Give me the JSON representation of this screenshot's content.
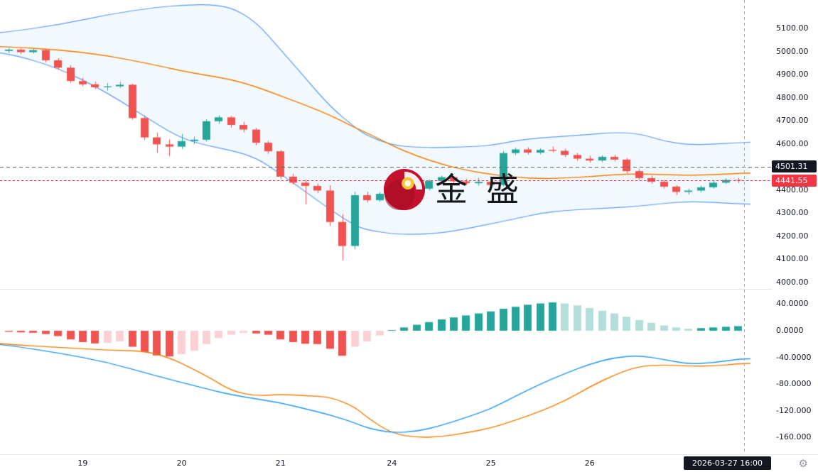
{
  "watermark": {
    "logo": "jinsheng-logo",
    "text": "金盛"
  },
  "overlays": {
    "reference_line": {
      "label": "4501.31",
      "value": 4501.31,
      "color": "#131722"
    },
    "current_price_line": {
      "label": "4441.55",
      "value": 4441.55,
      "color": "#f23645"
    }
  },
  "price_axis": {
    "main_ticks": [
      {
        "label": "5100.00",
        "value": 5100
      },
      {
        "label": "5000.00",
        "value": 5000
      },
      {
        "label": "4900.00",
        "value": 4900
      },
      {
        "label": "4800.00",
        "value": 4800
      },
      {
        "label": "4700.00",
        "value": 4700
      },
      {
        "label": "4600.00",
        "value": 4600
      },
      {
        "label": "4400.00",
        "value": 4400
      },
      {
        "label": "4300.00",
        "value": 4300
      },
      {
        "label": "4200.00",
        "value": 4200
      },
      {
        "label": "4100.00",
        "value": 4100
      },
      {
        "label": "4000.00",
        "value": 4000
      }
    ],
    "indicator_ticks": [
      {
        "label": "40.0000",
        "value": 40
      },
      {
        "label": "0.0000",
        "value": 0
      },
      {
        "label": "-40.0000",
        "value": -40
      },
      {
        "label": "-80.0000",
        "value": -80
      },
      {
        "label": "-120.000",
        "value": -120
      },
      {
        "label": "-160.000",
        "value": -160
      }
    ]
  },
  "time_axis": {
    "day_labels": [
      {
        "label": "19",
        "candle_index": 6
      },
      {
        "label": "20",
        "candle_index": 14
      },
      {
        "label": "21",
        "candle_index": 22
      },
      {
        "label": "24",
        "candle_index": 31
      },
      {
        "label": "25",
        "candle_index": 39
      },
      {
        "label": "26",
        "candle_index": 47
      }
    ],
    "current_time_label": "2026-03-27 16:00"
  },
  "colors": {
    "up": "#26a69a",
    "down": "#ef5350",
    "bb_line": "#5b9cf6",
    "bb_fill": "rgba(33,150,243,0.06)",
    "basis": "#f57c00",
    "macd_line": "#2196f3",
    "signal_line": "#f57c00",
    "hist_grow_above": "#26a69a",
    "hist_fall_above": "#b2dfdb",
    "hist_fall_below": "#ef5350",
    "hist_grow_below": "#fbd0d4"
  },
  "chart_data": [
    {
      "type": "candlestick",
      "pane": "main",
      "title": "",
      "ylim": [
        4000,
        5100
      ],
      "overlays": [
        "bollinger-band-upper",
        "bollinger-band-basis",
        "bollinger-band-lower"
      ],
      "ohlc": [
        [
          5002,
          5014,
          4994,
          5008
        ],
        [
          5008,
          5013,
          4989,
          4997
        ],
        [
          4997,
          5011,
          4991,
          5006
        ],
        [
          5006,
          5009,
          4953,
          4962
        ],
        [
          4962,
          4971,
          4921,
          4930
        ],
        [
          4930,
          4941,
          4864,
          4872
        ],
        [
          4872,
          4886,
          4849,
          4858
        ],
        [
          4858,
          4869,
          4837,
          4845
        ],
        [
          4845,
          4863,
          4831,
          4849
        ],
        [
          4849,
          4868,
          4842,
          4856
        ],
        [
          4856,
          4861,
          4704,
          4712
        ],
        [
          4712,
          4723,
          4617,
          4628
        ],
        [
          4628,
          4649,
          4561,
          4598
        ],
        [
          4598,
          4619,
          4547,
          4588
        ],
        [
          4588,
          4643,
          4579,
          4612
        ],
        [
          4612,
          4631,
          4599,
          4618
        ],
        [
          4618,
          4706,
          4611,
          4698
        ],
        [
          4698,
          4723,
          4687,
          4715
        ],
        [
          4715,
          4721,
          4671,
          4682
        ],
        [
          4682,
          4696,
          4649,
          4662
        ],
        [
          4662,
          4669,
          4594,
          4605
        ],
        [
          4605,
          4613,
          4557,
          4568
        ],
        [
          4568,
          4573,
          4447,
          4458
        ],
        [
          4458,
          4471,
          4424,
          4432
        ],
        [
          4432,
          4446,
          4338,
          4418
        ],
        [
          4418,
          4429,
          4387,
          4398
        ],
        [
          4398,
          4421,
          4244,
          4262
        ],
        [
          4262,
          4296,
          4096,
          4158
        ],
        [
          4158,
          4392,
          4143,
          4378
        ],
        [
          4378,
          4393,
          4347,
          4356
        ],
        [
          4356,
          4391,
          4349,
          4384
        ],
        [
          4384,
          4406,
          4369,
          4396
        ],
        [
          4396,
          4429,
          4389,
          4422
        ],
        [
          4422,
          4431,
          4397,
          4406
        ],
        [
          4406,
          4446,
          4399,
          4440
        ],
        [
          4440,
          4463,
          4431,
          4456
        ],
        [
          4456,
          4461,
          4431,
          4438
        ],
        [
          4438,
          4449,
          4421,
          4430
        ],
        [
          4430,
          4453,
          4419,
          4436
        ],
        [
          4436,
          4443,
          4414,
          4422
        ],
        [
          4422,
          4569,
          4417,
          4560
        ],
        [
          4560,
          4583,
          4551,
          4576
        ],
        [
          4576,
          4585,
          4554,
          4562
        ],
        [
          4562,
          4581,
          4555,
          4574
        ],
        [
          4574,
          4589,
          4564,
          4570
        ],
        [
          4570,
          4579,
          4544,
          4552
        ],
        [
          4552,
          4561,
          4527,
          4536
        ],
        [
          4536,
          4549,
          4519,
          4528
        ],
        [
          4528,
          4551,
          4521,
          4544
        ],
        [
          4544,
          4553,
          4524,
          4532
        ],
        [
          4532,
          4539,
          4474,
          4482
        ],
        [
          4482,
          4491,
          4444,
          4452
        ],
        [
          4452,
          4463,
          4427,
          4436
        ],
        [
          4436,
          4443,
          4407,
          4415
        ],
        [
          4415,
          4421,
          4378,
          4392
        ],
        [
          4392,
          4406,
          4381,
          4398
        ],
        [
          4398,
          4419,
          4391,
          4412
        ],
        [
          4412,
          4439,
          4407,
          4432
        ],
        [
          4432,
          4451,
          4427,
          4444
        ],
        [
          4444,
          4453,
          4431,
          4441.55
        ]
      ],
      "bollinger_upper": [
        [
          -1,
          5080
        ],
        [
          0,
          5085
        ],
        [
          4,
          5115
        ],
        [
          8,
          5160
        ],
        [
          12,
          5192
        ],
        [
          14,
          5200
        ],
        [
          16,
          5204
        ],
        [
          18,
          5192
        ],
        [
          20,
          5130
        ],
        [
          22,
          5008
        ],
        [
          24,
          4885
        ],
        [
          26,
          4762
        ],
        [
          28,
          4672
        ],
        [
          29,
          4635
        ],
        [
          31,
          4595
        ],
        [
          33,
          4585
        ],
        [
          35,
          4584
        ],
        [
          37,
          4587
        ],
        [
          39,
          4593
        ],
        [
          41,
          4614
        ],
        [
          43,
          4626
        ],
        [
          45,
          4633
        ],
        [
          47,
          4641
        ],
        [
          49,
          4650
        ],
        [
          51,
          4645
        ],
        [
          53,
          4612
        ],
        [
          55,
          4596
        ],
        [
          57,
          4599
        ],
        [
          59,
          4605
        ],
        [
          60,
          4607
        ]
      ],
      "bollinger_basis": [
        [
          -1,
          5022
        ],
        [
          0,
          5020
        ],
        [
          4,
          5008
        ],
        [
          8,
          4983
        ],
        [
          12,
          4940
        ],
        [
          14,
          4916
        ],
        [
          16,
          4897
        ],
        [
          18,
          4879
        ],
        [
          20,
          4848
        ],
        [
          22,
          4808
        ],
        [
          24,
          4768
        ],
        [
          26,
          4725
        ],
        [
          28,
          4670
        ],
        [
          29,
          4648
        ],
        [
          31,
          4592
        ],
        [
          33,
          4548
        ],
        [
          35,
          4512
        ],
        [
          37,
          4486
        ],
        [
          39,
          4468
        ],
        [
          41,
          4456
        ],
        [
          43,
          4449
        ],
        [
          45,
          4452
        ],
        [
          47,
          4458
        ],
        [
          49,
          4467
        ],
        [
          51,
          4470
        ],
        [
          53,
          4467
        ],
        [
          55,
          4464
        ],
        [
          57,
          4467
        ],
        [
          59,
          4472
        ],
        [
          60,
          4474
        ]
      ],
      "bollinger_lower": [
        [
          -1,
          4995
        ],
        [
          0,
          4992
        ],
        [
          4,
          4930
        ],
        [
          8,
          4822
        ],
        [
          12,
          4685
        ],
        [
          14,
          4624
        ],
        [
          16,
          4593
        ],
        [
          18,
          4572
        ],
        [
          20,
          4541
        ],
        [
          22,
          4470
        ],
        [
          24,
          4393
        ],
        [
          26,
          4316
        ],
        [
          28,
          4246
        ],
        [
          29,
          4228
        ],
        [
          31,
          4210
        ],
        [
          33,
          4208
        ],
        [
          35,
          4214
        ],
        [
          37,
          4232
        ],
        [
          39,
          4254
        ],
        [
          41,
          4276
        ],
        [
          43,
          4300
        ],
        [
          45,
          4312
        ],
        [
          47,
          4318
        ],
        [
          49,
          4324
        ],
        [
          51,
          4330
        ],
        [
          53,
          4343
        ],
        [
          55,
          4350
        ],
        [
          57,
          4347
        ],
        [
          59,
          4341
        ],
        [
          60,
          4339
        ]
      ]
    },
    {
      "type": "bar",
      "pane": "indicator",
      "name": "macd",
      "ylim": [
        -175,
        55
      ],
      "histogram": [
        -1.5,
        -2.5,
        -3,
        -5,
        -8,
        -13,
        -17,
        -19,
        -18,
        -16,
        -24,
        -32,
        -37,
        -38.5,
        -35,
        -30,
        -20,
        -11,
        -6,
        -3,
        -4,
        -6,
        -13,
        -17,
        -19.5,
        -20,
        -27,
        -37.5,
        -24,
        -16,
        -7,
        1,
        5,
        9,
        13,
        17,
        20,
        23,
        26,
        29,
        33,
        36,
        39,
        41,
        42.5,
        41,
        38,
        34,
        30,
        26,
        21,
        16,
        12,
        8,
        5,
        3,
        4,
        5,
        6,
        7
      ],
      "macd_line": [
        [
          -1,
          -20
        ],
        [
          0,
          -22
        ],
        [
          4,
          -33
        ],
        [
          8,
          -47
        ],
        [
          12,
          -68
        ],
        [
          16,
          -87
        ],
        [
          18,
          -96
        ],
        [
          20,
          -102
        ],
        [
          22,
          -108
        ],
        [
          24,
          -117
        ],
        [
          26,
          -126
        ],
        [
          28,
          -138
        ],
        [
          29,
          -146
        ],
        [
          31,
          -153
        ],
        [
          33,
          -151
        ],
        [
          35,
          -142
        ],
        [
          37,
          -130
        ],
        [
          39,
          -117
        ],
        [
          41,
          -98
        ],
        [
          43,
          -80
        ],
        [
          45,
          -64
        ],
        [
          47,
          -50
        ],
        [
          49,
          -40
        ],
        [
          51,
          -37
        ],
        [
          53,
          -43
        ],
        [
          55,
          -50
        ],
        [
          57,
          -48
        ],
        [
          59,
          -42.5
        ],
        [
          60,
          -42
        ]
      ],
      "signal_line_rule": "macd_line value minus histogram value at same candle index"
    }
  ]
}
